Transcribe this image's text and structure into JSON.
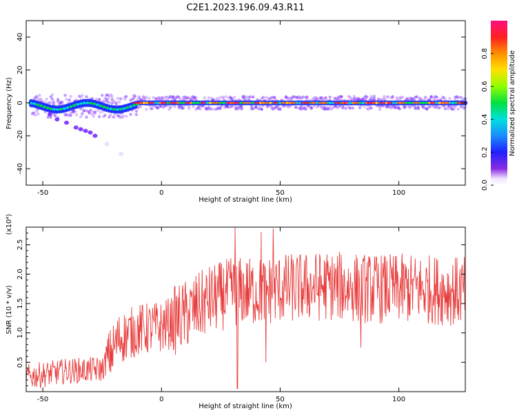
{
  "title": "C2E1.2023.196.09.43.R11",
  "chart_data": [
    {
      "type": "heatmap",
      "xlabel": "Height of straight line (km)",
      "ylabel": "Frequency (Hz)",
      "xlim": [
        -57,
        128
      ],
      "ylim": [
        -50,
        50
      ],
      "xticks": [
        "-50",
        "0",
        "50",
        "100"
      ],
      "yticks": [
        "-40",
        "-20",
        "0",
        "20",
        "40"
      ],
      "colorbar": {
        "label": "Normalized spectral amplitude",
        "range": [
          0,
          1
        ],
        "ticks": [
          "0.0",
          "0.2",
          "0.4",
          "0.6",
          "0.8"
        ]
      },
      "ridge": {
        "frequency": 0,
        "x_start": -55,
        "x_end": 128
      },
      "trail_points": [
        {
          "x": -47,
          "y": -7
        },
        {
          "x": -44,
          "y": -10
        },
        {
          "x": -40,
          "y": -12
        },
        {
          "x": -36,
          "y": -15
        },
        {
          "x": -34,
          "y": -16
        },
        {
          "x": -32,
          "y": -17
        },
        {
          "x": -30,
          "y": -18
        },
        {
          "x": -28,
          "y": -20
        },
        {
          "x": -23,
          "y": -25
        },
        {
          "x": -17,
          "y": -31
        }
      ]
    },
    {
      "type": "line",
      "xlabel": "Height of straight line (km)",
      "ylabel": "SNR (10 * v/v)",
      "multiplier": "(x10⁴)",
      "xlim": [
        -57,
        128
      ],
      "ylim": [
        0,
        2.8
      ],
      "xticks": [
        "-50",
        "0",
        "50",
        "100"
      ],
      "yticks": [
        "0.5",
        "1.0",
        "1.5",
        "2.0",
        "2.5"
      ],
      "series": [
        {
          "color": "#e83c3c",
          "x_start": -57,
          "x_end": 128,
          "trend": [
            [
              -57,
              0.25
            ],
            [
              -40,
              0.35
            ],
            [
              -25,
              0.38
            ],
            [
              -18,
              0.9
            ],
            [
              -10,
              1.05
            ],
            [
              0,
              1.1
            ],
            [
              10,
              1.3
            ],
            [
              20,
              1.55
            ],
            [
              30,
              1.7
            ],
            [
              40,
              1.7
            ],
            [
              50,
              1.75
            ],
            [
              70,
              1.8
            ],
            [
              90,
              1.75
            ],
            [
              110,
              1.75
            ],
            [
              128,
              1.7
            ]
          ],
          "peaks": [
            {
              "x": 31,
              "y": 2.8
            },
            {
              "x": 32,
              "y": 0.05
            },
            {
              "x": 42,
              "y": 2.72
            },
            {
              "x": 47,
              "y": 2.78
            },
            {
              "x": 44,
              "y": 0.5
            },
            {
              "x": 84,
              "y": 0.75
            }
          ]
        }
      ]
    }
  ]
}
